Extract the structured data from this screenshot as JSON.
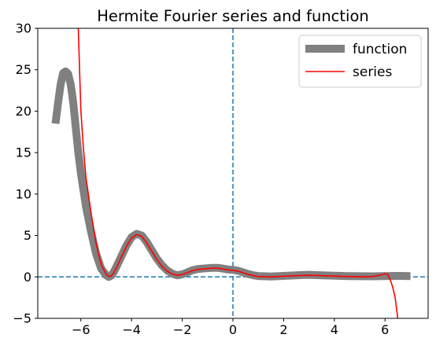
{
  "chart_data": {
    "type": "line",
    "title": "Hermite Fourier series and function",
    "xlabel": "",
    "ylabel": "",
    "xlim": [
      -7.7,
      7.7
    ],
    "ylim": [
      -5,
      30
    ],
    "x_ticks": [
      -6,
      -4,
      -2,
      0,
      2,
      4,
      6
    ],
    "x_tick_labels": [
      "−6",
      "−4",
      "−2",
      "0",
      "2",
      "4",
      "6"
    ],
    "y_ticks": [
      -5,
      0,
      5,
      10,
      15,
      20,
      25,
      30
    ],
    "y_tick_labels": [
      "−5",
      "0",
      "5",
      "10",
      "15",
      "20",
      "25",
      "30"
    ],
    "grid": false,
    "legend_position": "top-right",
    "reference_lines": [
      {
        "orientation": "vertical",
        "value": 0,
        "style": "dashed",
        "color": "#1f77b4"
      },
      {
        "orientation": "horizontal",
        "value": 0,
        "style": "dashed",
        "color": "#1f77b4"
      }
    ],
    "series": [
      {
        "name": "function",
        "color": "#808080",
        "style": "thick",
        "x": [
          -7.0,
          -6.9,
          -6.8,
          -6.7,
          -6.6,
          -6.5,
          -6.4,
          -6.3,
          -6.2,
          -6.1,
          -6.0,
          -5.8,
          -5.6,
          -5.4,
          -5.2,
          -5.0,
          -4.9,
          -4.8,
          -4.7,
          -4.6,
          -4.4,
          -4.2,
          -4.0,
          -3.8,
          -3.6,
          -3.4,
          -3.2,
          -3.0,
          -2.8,
          -2.6,
          -2.4,
          -2.2,
          -2.0,
          -1.8,
          -1.6,
          -1.4,
          -1.2,
          -1.0,
          -0.8,
          -0.6,
          -0.4,
          -0.2,
          0.0,
          0.2,
          0.4,
          0.6,
          0.8,
          1.0,
          1.2,
          1.5,
          2.0,
          2.5,
          3.0,
          3.5,
          4.0,
          4.5,
          5.0,
          5.5,
          6.0,
          6.5,
          7.0
        ],
        "y": [
          18.5,
          21.0,
          23.2,
          24.6,
          24.8,
          24.5,
          23.2,
          21.0,
          18.0,
          15.0,
          12.5,
          8.5,
          5.5,
          2.8,
          1.0,
          0.2,
          0.0,
          0.15,
          0.6,
          1.2,
          2.5,
          3.8,
          4.8,
          5.2,
          5.0,
          4.2,
          3.2,
          2.2,
          1.4,
          0.8,
          0.4,
          0.2,
          0.3,
          0.55,
          0.8,
          0.95,
          1.0,
          1.05,
          1.1,
          1.1,
          1.0,
          0.9,
          0.85,
          0.75,
          0.55,
          0.35,
          0.2,
          0.1,
          0.08,
          0.05,
          0.12,
          0.2,
          0.25,
          0.2,
          0.15,
          0.1,
          0.08,
          0.07,
          0.1,
          0.12,
          0.1
        ]
      },
      {
        "name": "series",
        "color": "#ff0000",
        "style": "thin",
        "x": [
          -6.1,
          -6.05,
          -6.0,
          -5.9,
          -5.8,
          -5.6,
          -5.4,
          -5.2,
          -5.0,
          -4.9,
          -4.8,
          -4.7,
          -4.6,
          -4.4,
          -4.2,
          -4.0,
          -3.8,
          -3.6,
          -3.4,
          -3.2,
          -3.0,
          -2.8,
          -2.6,
          -2.4,
          -2.2,
          -2.0,
          -1.8,
          -1.6,
          -1.4,
          -1.2,
          -1.0,
          -0.8,
          -0.6,
          -0.4,
          -0.2,
          0.0,
          0.2,
          0.4,
          0.6,
          0.8,
          1.0,
          1.2,
          1.5,
          2.0,
          2.5,
          3.0,
          3.5,
          4.0,
          4.5,
          5.0,
          5.5,
          5.8,
          6.0,
          6.1,
          6.2,
          6.3,
          6.4,
          6.5
        ],
        "y": [
          30.0,
          25.0,
          20.0,
          15.5,
          12.0,
          7.8,
          4.0,
          1.5,
          0.3,
          0.05,
          0.1,
          0.5,
          1.1,
          2.4,
          3.7,
          4.7,
          5.1,
          4.9,
          4.1,
          3.1,
          2.1,
          1.3,
          0.7,
          0.35,
          0.2,
          0.3,
          0.5,
          0.75,
          0.9,
          0.95,
          1.0,
          1.05,
          1.05,
          0.95,
          0.85,
          0.8,
          0.7,
          0.5,
          0.3,
          0.15,
          0.05,
          0.02,
          0.0,
          0.08,
          0.15,
          0.2,
          0.15,
          0.1,
          0.05,
          0.02,
          0.05,
          0.2,
          0.4,
          0.3,
          -0.3,
          -1.2,
          -2.5,
          -5.0
        ]
      }
    ]
  }
}
